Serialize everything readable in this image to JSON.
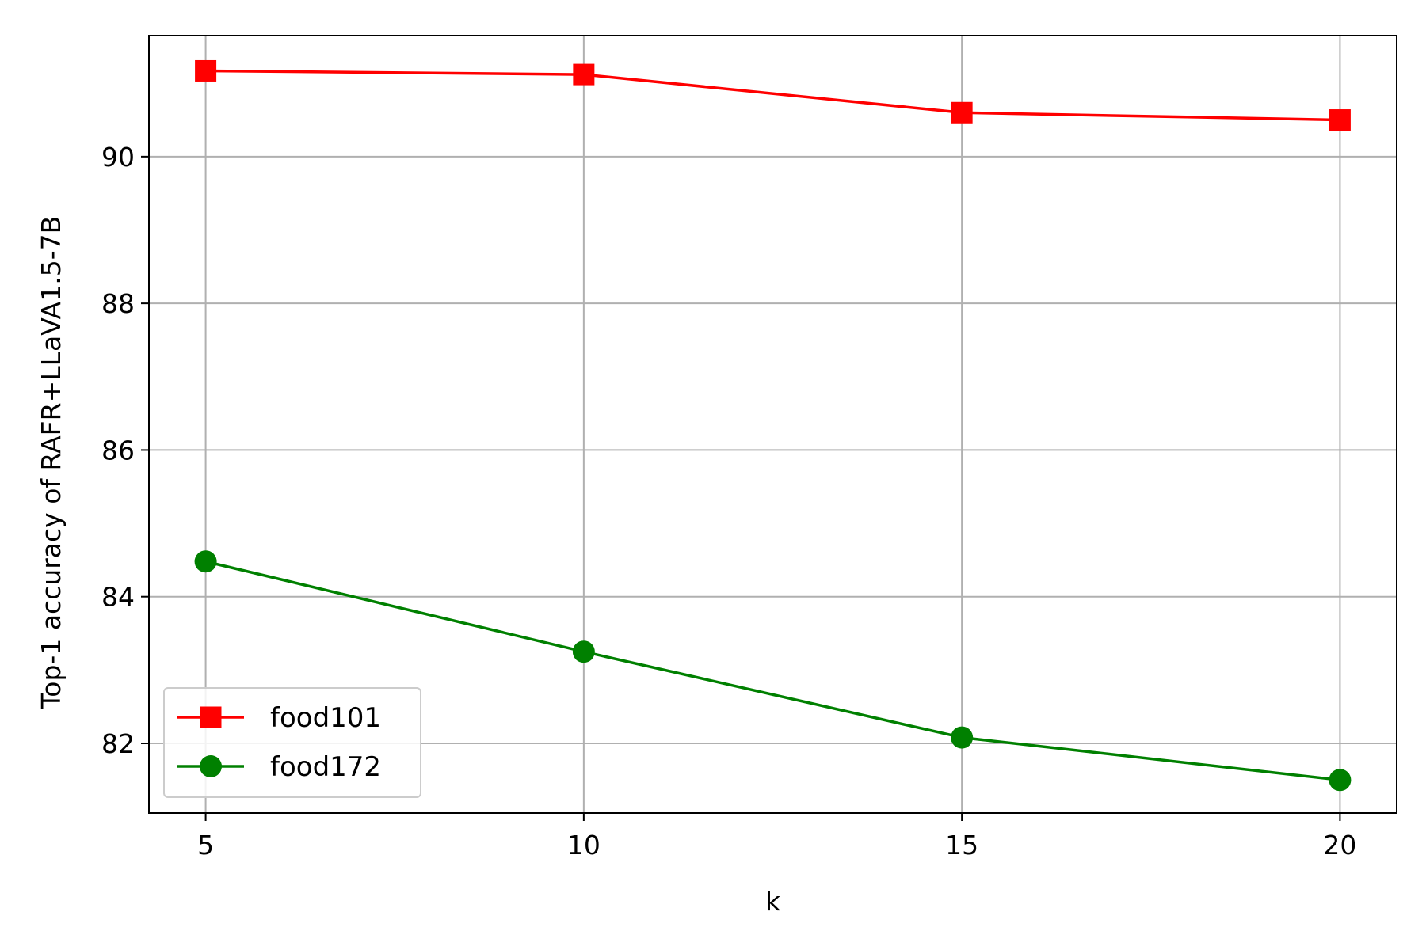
{
  "chart_data": {
    "type": "line",
    "title": "",
    "xlabel": "k",
    "ylabel": "Top-1 accuracy of RAFR+LLaVA1.5-7B",
    "x": [
      5,
      10,
      15,
      20
    ],
    "xticks": [
      5,
      10,
      15,
      20
    ],
    "yticks": [
      82,
      84,
      86,
      88,
      90
    ],
    "xlim": [
      4.25,
      20.75
    ],
    "ylim": [
      81.05,
      91.65
    ],
    "grid": true,
    "legend_position": "lower left",
    "series": [
      {
        "name": "food101",
        "color": "#ff0000",
        "marker": "square",
        "values": [
          91.17,
          91.12,
          90.6,
          90.5
        ]
      },
      {
        "name": "food172",
        "color": "#008000",
        "marker": "circle",
        "values": [
          84.48,
          83.25,
          82.08,
          81.5
        ]
      }
    ]
  }
}
